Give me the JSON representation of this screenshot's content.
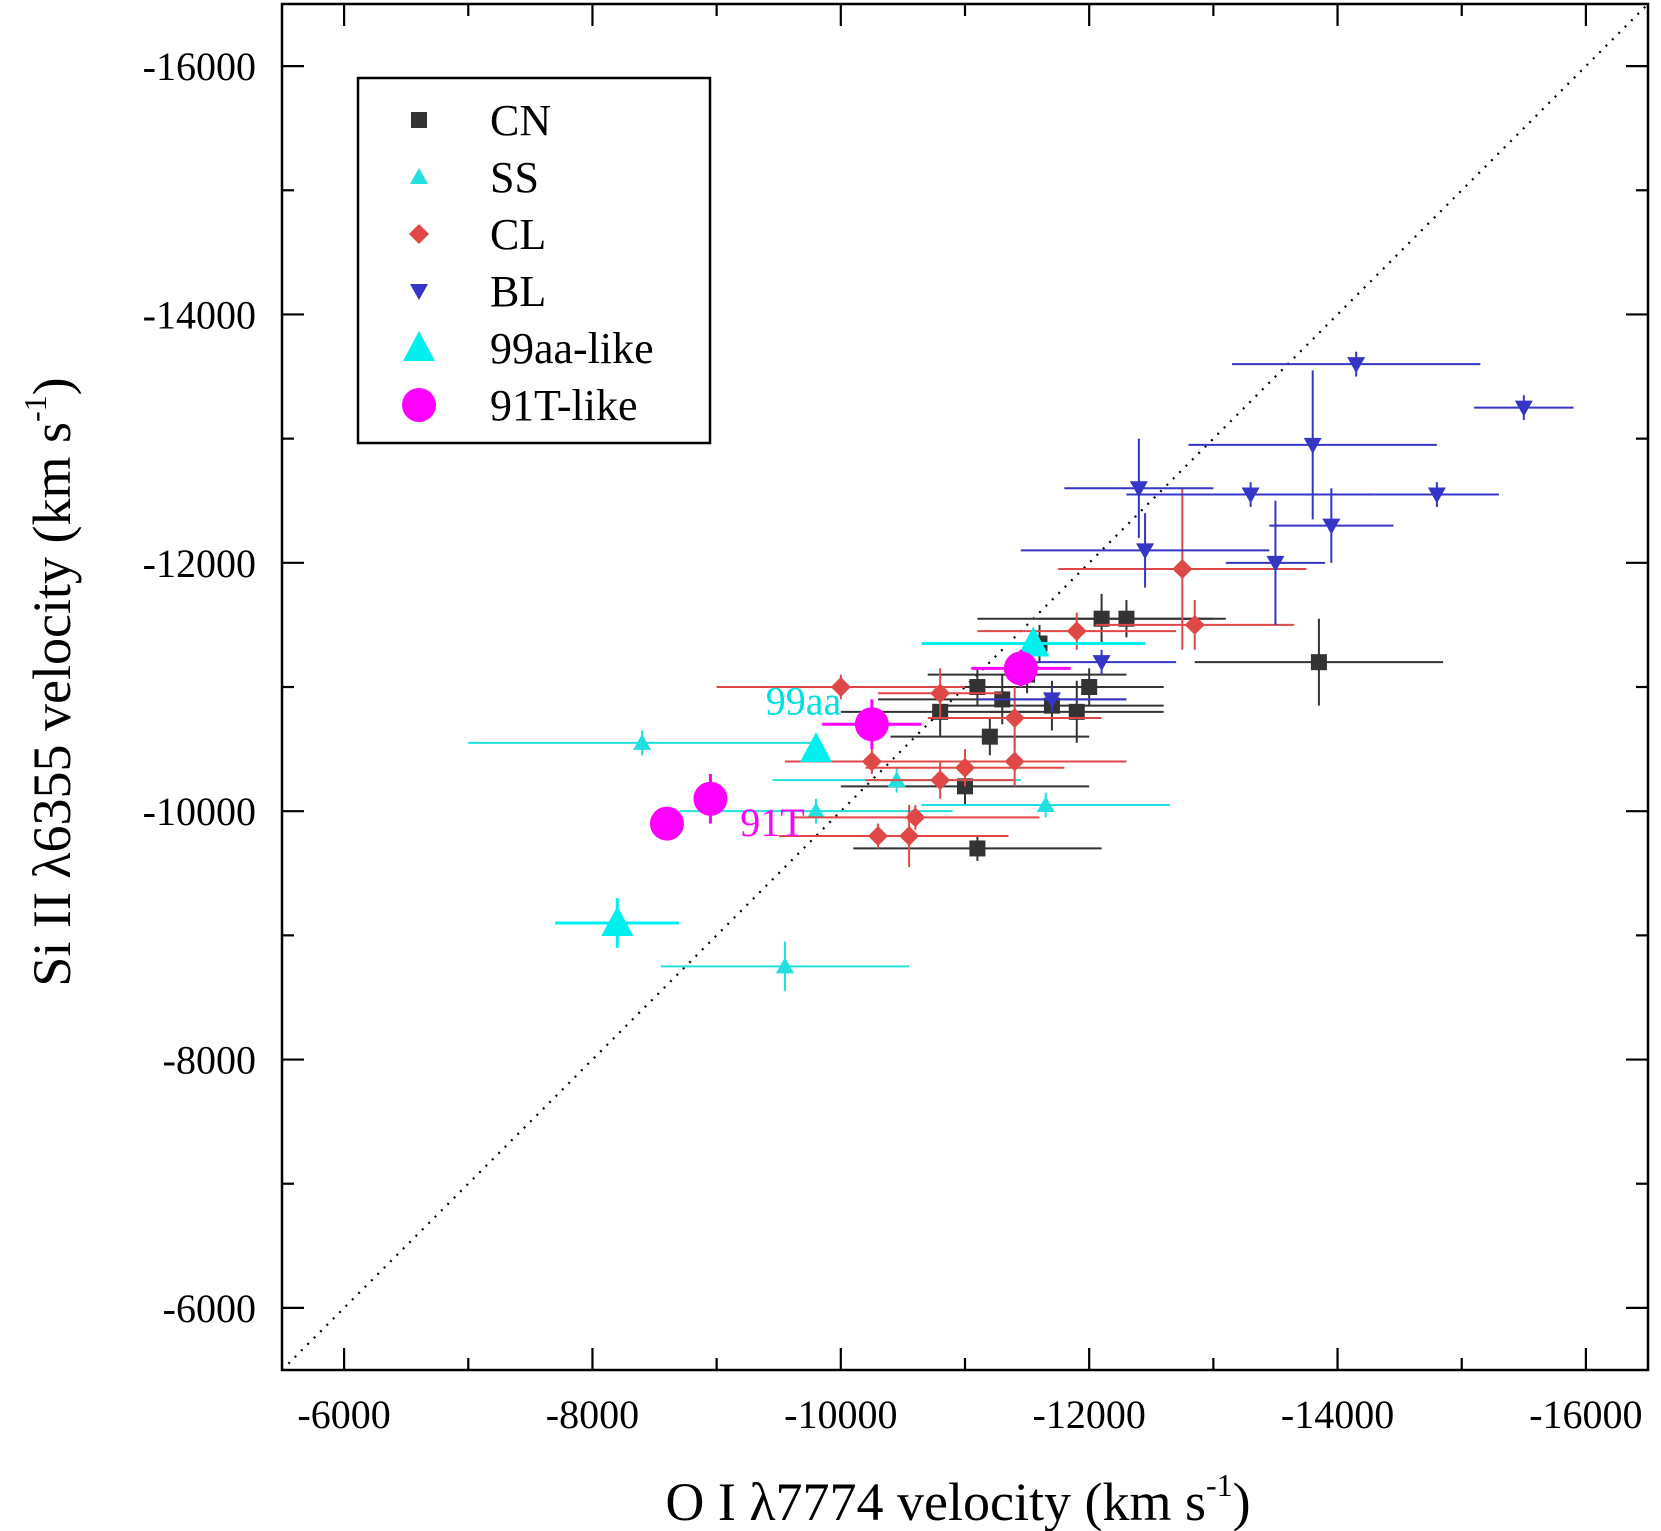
{
  "chart_data": {
    "type": "scatter",
    "xlabel": "O I λ7774 velocity (km s",
    "ylabel": "Si II λ6355 velocity (km s",
    "unit_exponent": "-1",
    "xlabel_close": ")",
    "ylabel_close": ")",
    "xlim": [
      -5500,
      -16500
    ],
    "ylim": [
      -5500,
      -16500
    ],
    "x_ticks": [
      -6000,
      -8000,
      -10000,
      -12000,
      -14000,
      -16000
    ],
    "y_ticks": [
      -6000,
      -8000,
      -10000,
      -12000,
      -14000,
      -16000
    ],
    "x_tick_labels": [
      "-6000",
      "-8000",
      "-10000",
      "-12000",
      "-14000",
      "-16000"
    ],
    "y_tick_labels": [
      "-6000",
      "-8000",
      "-10000",
      "-12000",
      "-14000",
      "-16000"
    ],
    "reference_line": "x = y (dotted)",
    "legend_position": "top-left",
    "legend": [
      {
        "label": "CN",
        "marker": "square-small",
        "color": "#333333"
      },
      {
        "label": "SS",
        "marker": "triangle-up-small",
        "color": "#22e0e0"
      },
      {
        "label": "CL",
        "marker": "diamond-small",
        "color": "#e04848"
      },
      {
        "label": "BL",
        "marker": "triangle-down-small",
        "color": "#3535c8"
      },
      {
        "label": "99aa-like",
        "marker": "triangle-up-large",
        "color": "#00f0f0"
      },
      {
        "label": "91T-like",
        "marker": "circle-large",
        "color": "#ff00ff"
      }
    ],
    "annotations": [
      {
        "text": "99aa",
        "color": "#00e0e0",
        "x": -9700,
        "y": -10780
      },
      {
        "text": "91T",
        "color": "#ff00ff",
        "x": -9450,
        "y": -9800
      }
    ],
    "series": [
      {
        "name": "CN",
        "color": "#333333",
        "marker": "square-small",
        "points": [
          {
            "x": -11100,
            "y": -11000,
            "xerr": 900,
            "yerr": 150
          },
          {
            "x": -11300,
            "y": -10900,
            "xerr": 1000,
            "yerr": 200
          },
          {
            "x": -11500,
            "y": -11100,
            "xerr": 800,
            "yerr": 150
          },
          {
            "x": -11700,
            "y": -10850,
            "xerr": 900,
            "yerr": 200
          },
          {
            "x": -11900,
            "y": -10800,
            "xerr": 700,
            "yerr": 250
          },
          {
            "x": -12000,
            "y": -11000,
            "xerr": 600,
            "yerr": 150
          },
          {
            "x": -12100,
            "y": -11550,
            "xerr": 1000,
            "yerr": 200
          },
          {
            "x": -12300,
            "y": -11550,
            "xerr": 700,
            "yerr": 150
          },
          {
            "x": -11600,
            "y": -11350,
            "xerr": 800,
            "yerr": 150
          },
          {
            "x": -11200,
            "y": -10600,
            "xerr": 800,
            "yerr": 150
          },
          {
            "x": -10800,
            "y": -10800,
            "xerr": 800,
            "yerr": 200
          },
          {
            "x": -11000,
            "y": -10200,
            "xerr": 1000,
            "yerr": 150
          },
          {
            "x": -11100,
            "y": -9700,
            "xerr": 1000,
            "yerr": 100
          },
          {
            "x": -13850,
            "y": -11200,
            "xerr": 1000,
            "yerr": 350
          }
        ]
      },
      {
        "name": "SS",
        "color": "#22e0e0",
        "marker": "triangle-up-small",
        "points": [
          {
            "x": -8400,
            "y": -10550,
            "xerr": 1400,
            "yerr": 100
          },
          {
            "x": -9800,
            "y": -10000,
            "xerr": 1100,
            "yerr": 100
          },
          {
            "x": -10450,
            "y": -10250,
            "xerr": 1000,
            "yerr": 100
          },
          {
            "x": -11650,
            "y": -10050,
            "xerr": 1000,
            "yerr": 100
          },
          {
            "x": -9550,
            "y": -8750,
            "xerr": 1000,
            "yerr": 200
          }
        ]
      },
      {
        "name": "CL",
        "color": "#e04848",
        "marker": "diamond-small",
        "points": [
          {
            "x": -10000,
            "y": -11000,
            "xerr": 1000,
            "yerr": 100
          },
          {
            "x": -10800,
            "y": -10950,
            "xerr": 500,
            "yerr": 200
          },
          {
            "x": -10250,
            "y": -10400,
            "xerr": 700,
            "yerr": 100
          },
          {
            "x": -10800,
            "y": -10250,
            "xerr": 600,
            "yerr": 150
          },
          {
            "x": -11000,
            "y": -10350,
            "xerr": 800,
            "yerr": 150
          },
          {
            "x": -11400,
            "y": -10400,
            "xerr": 900,
            "yerr": 200
          },
          {
            "x": -11400,
            "y": -10750,
            "xerr": 700,
            "yerr": 250
          },
          {
            "x": -10600,
            "y": -9950,
            "xerr": 1000,
            "yerr": 100
          },
          {
            "x": -10300,
            "y": -9800,
            "xerr": 800,
            "yerr": 100
          },
          {
            "x": -10550,
            "y": -9800,
            "xerr": 800,
            "yerr": 250
          },
          {
            "x": -11900,
            "y": -11450,
            "xerr": 800,
            "yerr": 150
          },
          {
            "x": -12750,
            "y": -11950,
            "xerr": 1000,
            "yerr": 650
          },
          {
            "x": -12850,
            "y": -11500,
            "xerr": 800,
            "yerr": 200
          }
        ]
      },
      {
        "name": "BL",
        "color": "#3535c8",
        "marker": "triangle-down-small",
        "points": [
          {
            "x": -12400,
            "y": -12600,
            "xerr": 600,
            "yerr": 400
          },
          {
            "x": -12450,
            "y": -12100,
            "xerr": 1000,
            "yerr": 300
          },
          {
            "x": -13300,
            "y": -12550,
            "xerr": 1000,
            "yerr": 100
          },
          {
            "x": -13800,
            "y": -12950,
            "xerr": 1000,
            "yerr": 600
          },
          {
            "x": -14150,
            "y": -13600,
            "xerr": 1000,
            "yerr": 100
          },
          {
            "x": -15500,
            "y": -13250,
            "xerr": 400,
            "yerr": 100
          },
          {
            "x": -14800,
            "y": -12550,
            "xerr": 500,
            "yerr": 100
          },
          {
            "x": -13950,
            "y": -12300,
            "xerr": 500,
            "yerr": 300
          },
          {
            "x": -13500,
            "y": -12000,
            "xerr": 400,
            "yerr": 500
          },
          {
            "x": -12100,
            "y": -11200,
            "xerr": 600,
            "yerr": 100
          },
          {
            "x": -11700,
            "y": -10900,
            "xerr": 600,
            "yerr": 100
          }
        ]
      },
      {
        "name": "99aa-like",
        "color": "#00f0f0",
        "marker": "triangle-up-large",
        "points": [
          {
            "x": -9800,
            "y": -10500,
            "xerr": 0,
            "yerr": 0
          },
          {
            "x": -11550,
            "y": -11350,
            "xerr": 900,
            "yerr": 100
          },
          {
            "x": -8200,
            "y": -9100,
            "xerr": 500,
            "yerr": 200
          }
        ]
      },
      {
        "name": "91T-like",
        "color": "#ff00ff",
        "marker": "circle-large",
        "points": [
          {
            "x": -10250,
            "y": -10700,
            "xerr": 400,
            "yerr": 200
          },
          {
            "x": -11450,
            "y": -11150,
            "xerr": 400,
            "yerr": 150
          },
          {
            "x": -8950,
            "y": -10100,
            "xerr": 0,
            "yerr": 200
          },
          {
            "x": -8600,
            "y": -9900,
            "xerr": 0,
            "yerr": 0
          }
        ]
      }
    ]
  }
}
